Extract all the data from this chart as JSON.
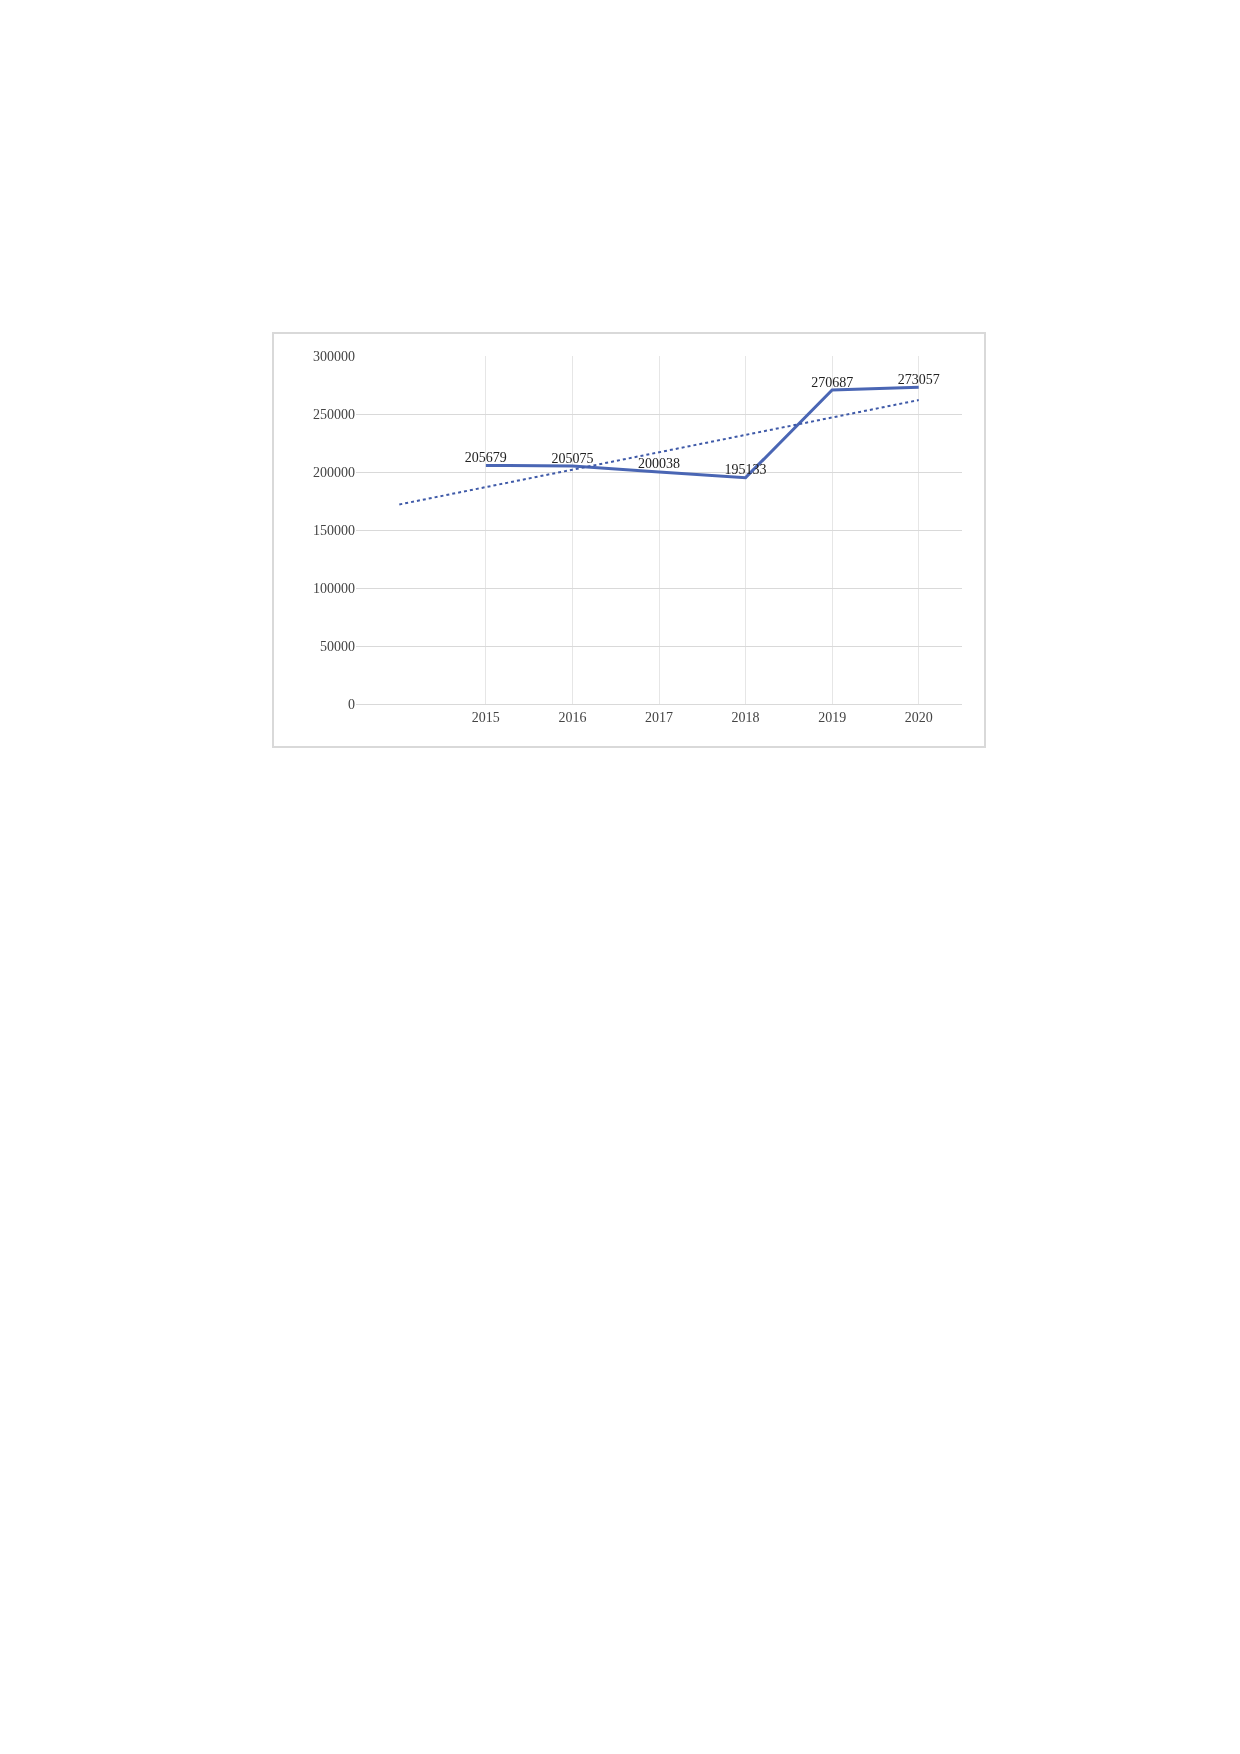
{
  "chart_data": {
    "type": "line",
    "categories": [
      null,
      "2015",
      "2016",
      "2017",
      "2018",
      "2019",
      "2020"
    ],
    "series": [
      {
        "color": "#4a66b4",
        "values": [
          null,
          205679,
          205075,
          200038,
          195133,
          270687,
          273057
        ],
        "value_labels": [
          null,
          "205679",
          "205075",
          "200038",
          "195133",
          "270687",
          "273057"
        ]
      },
      {
        "line_style": "dotted",
        "color": "#3f5aa8",
        "values": [
          172000,
          187000,
          202000,
          217000,
          232000,
          247000,
          262000
        ]
      }
    ],
    "ylim": [
      0,
      300000
    ],
    "yticks": [
      0,
      50000,
      100000,
      150000,
      200000,
      250000,
      300000
    ],
    "grid": true
  }
}
